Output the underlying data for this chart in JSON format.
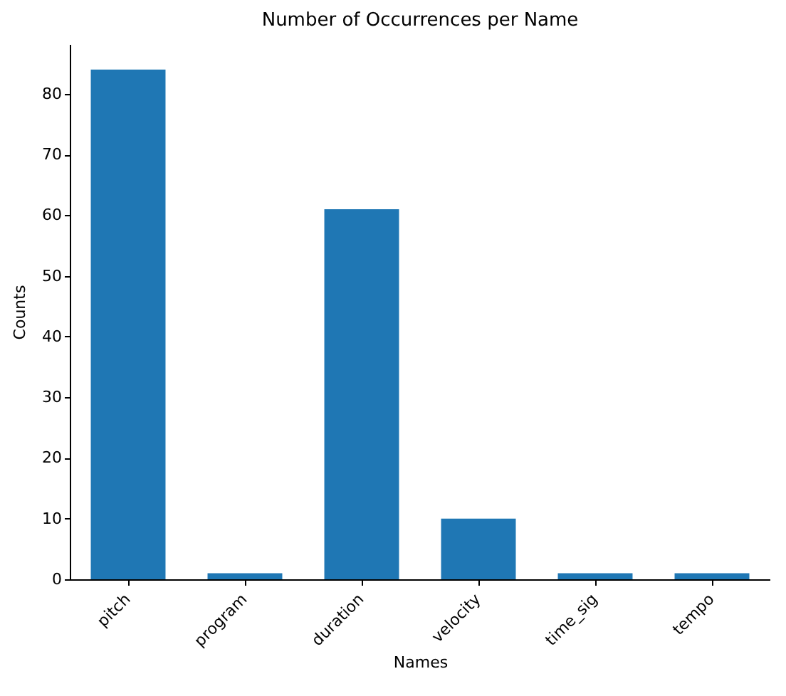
{
  "chart_data": {
    "type": "bar",
    "title": "Number of Occurrences per Name",
    "xlabel": "Names",
    "ylabel": "Counts",
    "categories": [
      "pitch",
      "program",
      "duration",
      "velocity",
      "time_sig",
      "tempo"
    ],
    "values": [
      84,
      1,
      61,
      10,
      1,
      1
    ],
    "color": "#1f77b4",
    "ylim": [
      0,
      88.2
    ],
    "yticks": [
      0,
      10,
      20,
      30,
      40,
      50,
      60,
      70,
      80
    ],
    "grid": false
  }
}
